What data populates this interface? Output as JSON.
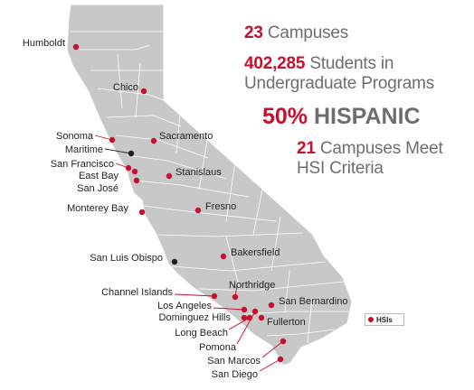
{
  "stats": {
    "campuses_num": "23",
    "campuses_text": " Campuses",
    "students_num": "402,285",
    "students_text_1": " Students in",
    "students_text_2": "Undergraduate Programs",
    "hispanic_num": "50%",
    "hispanic_text": " HISPANIC",
    "hsi_num": "21",
    "hsi_text_1": " Campuses Meet",
    "hsi_text_2": "HSI Criteria"
  },
  "legend": {
    "label": "HSIs",
    "color": "#c8102e"
  },
  "colors": {
    "hsi": "#c8102e",
    "non_hsi": "#231f20",
    "land": "#c8c8c8",
    "county_lines": "#ffffff"
  },
  "campuses": [
    {
      "name": "Humboldt",
      "hsi": true
    },
    {
      "name": "Chico",
      "hsi": true
    },
    {
      "name": "Sonoma",
      "hsi": true
    },
    {
      "name": "Sacramento",
      "hsi": true
    },
    {
      "name": "Maritime",
      "hsi": false
    },
    {
      "name": "San Francisco",
      "hsi": true
    },
    {
      "name": "East Bay",
      "hsi": true
    },
    {
      "name": "San José",
      "hsi": true
    },
    {
      "name": "Stanislaus",
      "hsi": true
    },
    {
      "name": "Monterey Bay",
      "hsi": true
    },
    {
      "name": "Fresno",
      "hsi": true
    },
    {
      "name": "San Luis Obispo",
      "hsi": false
    },
    {
      "name": "Bakersfield",
      "hsi": true
    },
    {
      "name": "Northridge",
      "hsi": true
    },
    {
      "name": "Channel Islands",
      "hsi": true
    },
    {
      "name": "San Bernardino",
      "hsi": true
    },
    {
      "name": "Los Angeles",
      "hsi": true
    },
    {
      "name": "Dominguez Hills",
      "hsi": true
    },
    {
      "name": "Fullerton",
      "hsi": true
    },
    {
      "name": "Long Beach",
      "hsi": true
    },
    {
      "name": "Pomona",
      "hsi": true
    },
    {
      "name": "San Marcos",
      "hsi": true
    },
    {
      "name": "San Diego",
      "hsi": true
    }
  ]
}
